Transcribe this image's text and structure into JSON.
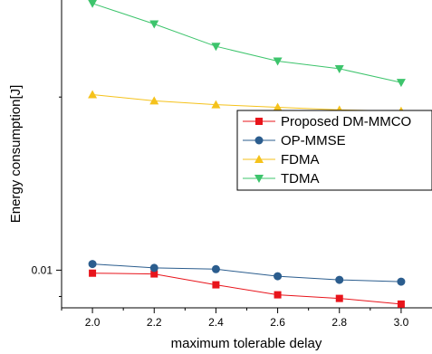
{
  "chart_data": {
    "type": "line",
    "xlabel": "maximum tolerable delay",
    "ylabel": "Energy consumption[J]",
    "y_scale": "log",
    "x": [
      2.0,
      2.2,
      2.4,
      2.6,
      2.8,
      3.0
    ],
    "x_tick_labels": [
      "2.0",
      "2.2",
      "2.4",
      "2.6",
      "2.8",
      "3.0"
    ],
    "xlim": [
      1.9,
      3.1
    ],
    "ylim": [
      0.0086,
      0.0295
    ],
    "y_tick_values": [
      0.01
    ],
    "y_tick_labels": [
      "0.01"
    ],
    "legend_position": "right",
    "series": [
      {
        "name": "Proposed DM-MMCO",
        "color": "#e8141b",
        "marker": "square",
        "values": [
          0.00988,
          0.00985,
          0.00943,
          0.00906,
          0.00893,
          0.00873
        ]
      },
      {
        "name": "OP-MMSE",
        "color": "#2b5d8e",
        "marker": "circle",
        "values": [
          0.01025,
          0.01009,
          0.01004,
          0.00976,
          0.00962,
          0.00955
        ]
      },
      {
        "name": "FDMA",
        "color": "#f5c21b",
        "marker": "triangle-up",
        "values": [
          0.0202,
          0.0197,
          0.0194,
          0.0192,
          0.019,
          0.0189
        ]
      },
      {
        "name": "TDMA",
        "color": "#3dc46c",
        "marker": "triangle-down",
        "values": [
          0.0291,
          0.0268,
          0.0245,
          0.0231,
          0.0224,
          0.0212
        ]
      }
    ]
  }
}
